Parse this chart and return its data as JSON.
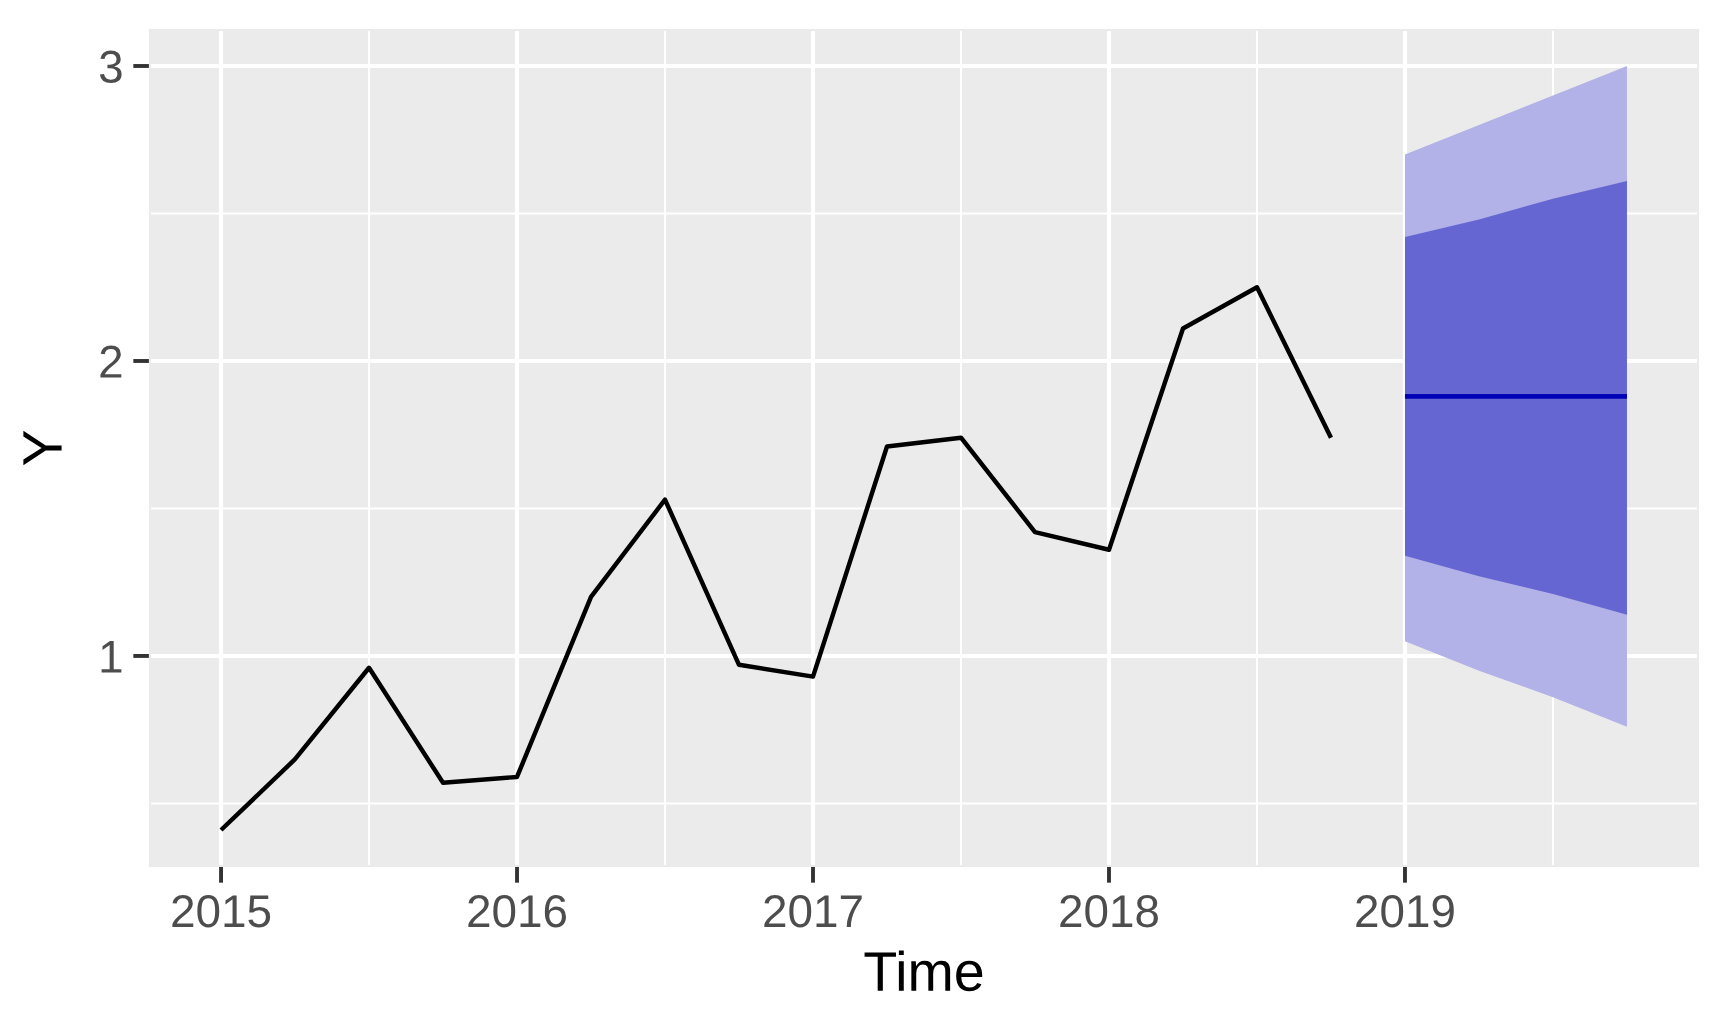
{
  "chart_data": {
    "type": "line",
    "xlabel": "Time",
    "ylabel": "Y",
    "xlim": [
      2014.76,
      2019.99
    ],
    "ylim": [
      0.288,
      3.122
    ],
    "xticks": [
      2015,
      {
        "value": 2015.5,
        "label": null
      },
      2016,
      {
        "value": 2016.5,
        "label": null
      },
      2017,
      {
        "value": 2017.5,
        "label": null
      },
      2018,
      {
        "value": 2018.5,
        "label": null
      },
      2019,
      {
        "value": 2019.5,
        "label": null
      }
    ],
    "yticks": [
      {
        "value": 0.5,
        "label": null
      },
      1,
      {
        "value": 1.5,
        "label": null
      },
      2,
      {
        "value": 2.5,
        "label": null
      },
      3
    ],
    "grid": true,
    "series": [
      {
        "x": [
          2019,
          2019.25,
          2019.5,
          2019.75
        ],
        "values": [
          1.88,
          1.88,
          1.88,
          1.88
        ],
        "lower": [
          1.05,
          0.95,
          0.86,
          0.76
        ],
        "upper": [
          2.7,
          2.8,
          2.9,
          3.0
        ],
        "color": "#0000b4"
      },
      {
        "x": [
          2019,
          2019.25,
          2019.5,
          2019.75
        ],
        "values": [
          1.88,
          1.88,
          1.88,
          1.88
        ],
        "lower": [
          1.34,
          1.27,
          1.21,
          1.14
        ],
        "upper": [
          2.42,
          2.48,
          2.55,
          2.61
        ],
        "color": "#0000b4"
      },
      {
        "type": "line",
        "x": [
          2015,
          2015.25,
          2015.5,
          2015.75,
          2016,
          2016.25,
          2016.5,
          2016.75,
          2017,
          2017.25,
          2017.5,
          2017.75,
          2018,
          2018.25,
          2018.5,
          2018.75
        ],
        "values": [
          0.41,
          0.65,
          0.96,
          0.57,
          0.59,
          1.2,
          1.53,
          0.97,
          0.93,
          1.71,
          1.74,
          1.42,
          1.36,
          2.11,
          2.25,
          1.74
        ],
        "color": "#000000"
      }
    ]
  }
}
